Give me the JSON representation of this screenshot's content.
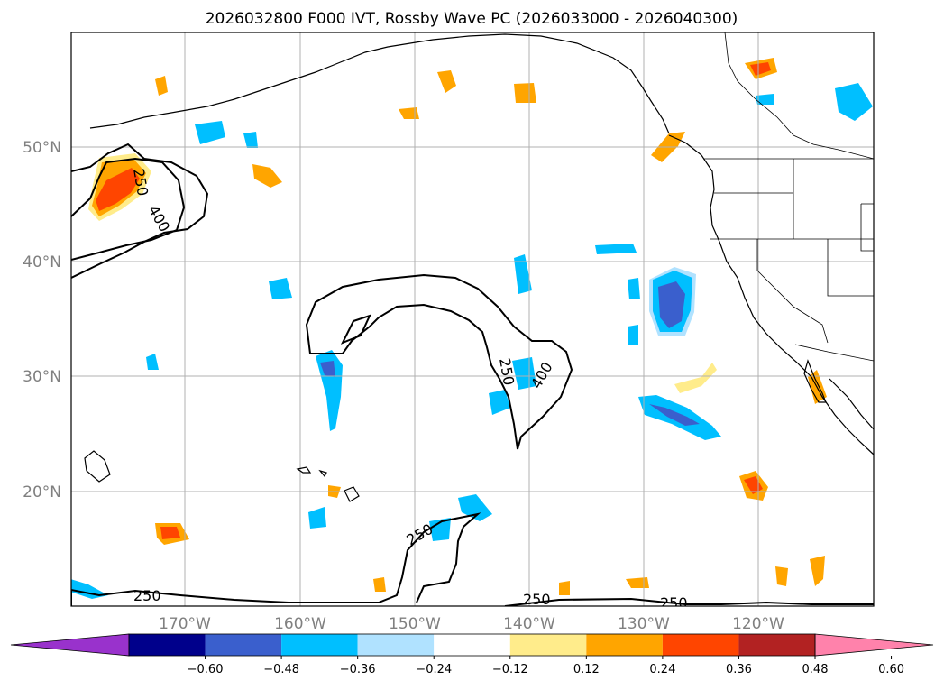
{
  "title": "2026032800 F000 IVT, Rossby Wave PC (2026033000 - 2026040300)",
  "latitude_labels": [
    "50°N",
    "40°N",
    "30°N",
    "20°N"
  ],
  "longitude_labels": [
    "170°W",
    "160°W",
    "150°W",
    "140°W",
    "130°W",
    "120°W"
  ],
  "colorbar": {
    "ticks": [
      "−0.60",
      "−0.48",
      "−0.36",
      "−0.24",
      "−0.12",
      "0.12",
      "0.24",
      "0.36",
      "0.48",
      "0.60"
    ],
    "colors": [
      "#9932cc",
      "#00008b",
      "#3a5fcd",
      "#00bfff",
      "#b0e2ff",
      "#ffffff",
      "#ffec8b",
      "#ffa500",
      "#ff4500",
      "#b22222",
      "#ff82ab"
    ]
  },
  "contour_labels": [
    "250",
    "400",
    "250",
    "400",
    "250",
    "250",
    "250",
    "250"
  ],
  "anomaly_colors": {
    "pos1": "#ffec8b",
    "pos2": "#ffa500",
    "pos3": "#ff4500",
    "neg1": "#b0e2ff",
    "neg2": "#00bfff",
    "neg3": "#3a5fcd",
    "neg4": "#00008b"
  }
}
